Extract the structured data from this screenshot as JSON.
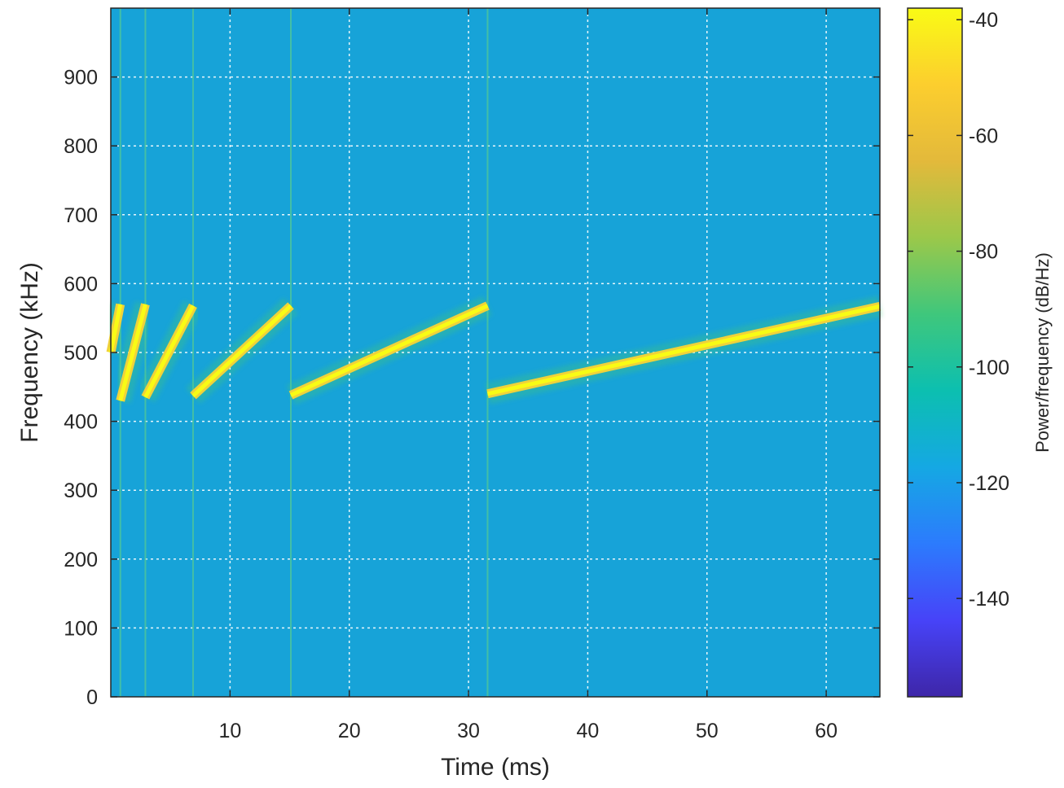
{
  "chart_data": {
    "type": "heatmap",
    "xlabel": "Time (ms)",
    "ylabel": "Frequency (kHz)",
    "xlim": [
      0,
      64.5
    ],
    "ylim": [
      0,
      1000
    ],
    "xticks": [
      10,
      20,
      30,
      40,
      50,
      60
    ],
    "xtick_labels": [
      "10",
      "20",
      "30",
      "40",
      "50",
      "60"
    ],
    "yticks": [
      0,
      100,
      200,
      300,
      400,
      500,
      600,
      700,
      800,
      900
    ],
    "ytick_labels": [
      "0",
      "100",
      "200",
      "300",
      "400",
      "500",
      "600",
      "700",
      "800",
      "900"
    ],
    "grid": true,
    "background_level_db": -105,
    "colorbar": {
      "label": "Power/frequency (dB/Hz)",
      "range": [
        -157,
        -38
      ],
      "ticks": [
        -40,
        -60,
        -80,
        -100,
        -120,
        -140
      ],
      "tick_labels": [
        "-40",
        "-60",
        "-80",
        "-100",
        "-120",
        "-140"
      ],
      "colormap": [
        "#3e26a8",
        "#4743f8",
        "#2c7bfd",
        "#15a8e3",
        "#0cbfb0",
        "#3fc77c",
        "#9bc84a",
        "#e3b93b",
        "#fcce2e",
        "#f9fb15"
      ]
    },
    "chirp_segments": [
      {
        "t_start": 0,
        "t_end": 0.8,
        "f_start": 500,
        "f_end": 570
      },
      {
        "t_start": 0.8,
        "t_end": 2.9,
        "f_start": 430,
        "f_end": 570
      },
      {
        "t_start": 2.9,
        "t_end": 6.9,
        "f_start": 435,
        "f_end": 568
      },
      {
        "t_start": 6.9,
        "t_end": 15.1,
        "f_start": 437,
        "f_end": 568
      },
      {
        "t_start": 15.1,
        "t_end": 31.6,
        "f_start": 438,
        "f_end": 568
      },
      {
        "t_start": 31.6,
        "t_end": 64.5,
        "f_start": 440,
        "f_end": 567
      }
    ],
    "chirp_level_db": -40
  }
}
